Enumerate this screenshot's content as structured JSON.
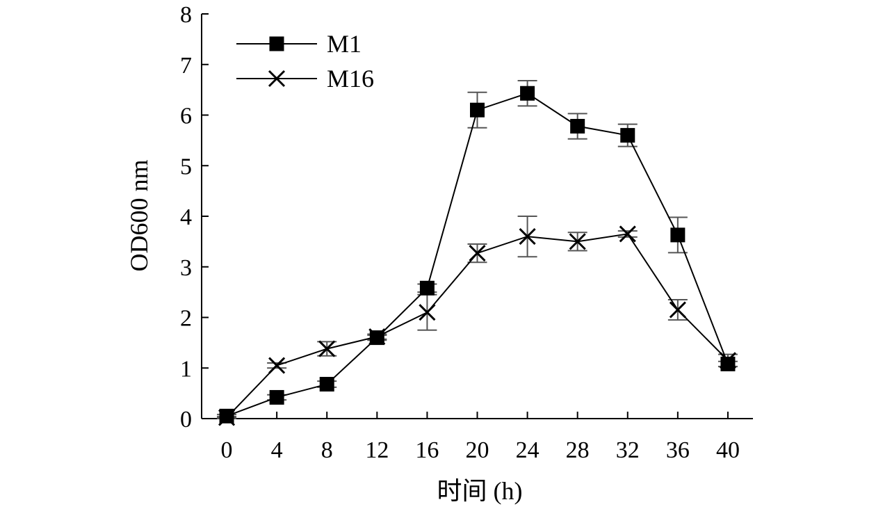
{
  "chart_data": {
    "type": "line",
    "title": "",
    "xlabel": "时间 (h)",
    "ylabel": "OD600 nm",
    "x": [
      0,
      4,
      8,
      12,
      16,
      20,
      24,
      28,
      32,
      36,
      40
    ],
    "xticks": [
      "0",
      "4",
      "8",
      "12",
      "16",
      "20",
      "24",
      "28",
      "32",
      "36",
      "40"
    ],
    "yticks": [
      "0",
      "1",
      "2",
      "3",
      "4",
      "5",
      "6",
      "7",
      "8"
    ],
    "xlim": [
      -2,
      42
    ],
    "ylim": [
      0,
      8
    ],
    "grid": false,
    "legend_position": "top-left",
    "series": [
      {
        "name": "M1",
        "marker": "square",
        "color": "#000000",
        "values": [
          0.05,
          0.42,
          0.68,
          1.6,
          2.58,
          6.1,
          6.43,
          5.78,
          5.6,
          3.63,
          1.08
        ],
        "errors": [
          0.03,
          0.05,
          0.06,
          0.05,
          0.08,
          0.35,
          0.25,
          0.25,
          0.22,
          0.35,
          0.05
        ]
      },
      {
        "name": "M16",
        "marker": "x",
        "color": "#000000",
        "values": [
          0.02,
          1.05,
          1.38,
          1.62,
          2.1,
          3.27,
          3.6,
          3.5,
          3.65,
          2.15,
          1.15
        ],
        "errors": [
          0.02,
          0.05,
          0.14,
          0.05,
          0.35,
          0.18,
          0.4,
          0.18,
          0.06,
          0.2,
          0.12
        ]
      }
    ],
    "error_bar_color": "#555555"
  }
}
